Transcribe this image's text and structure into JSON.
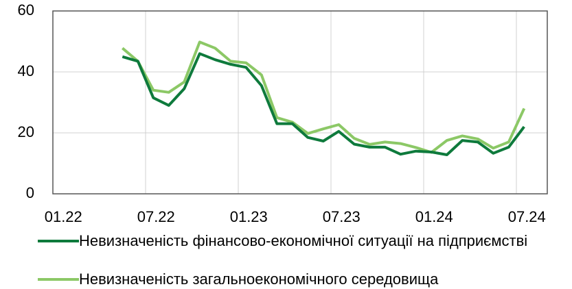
{
  "chart_data": {
    "type": "line",
    "categories": [
      "01.22",
      null,
      null,
      null,
      null,
      null,
      "07.22",
      null,
      null,
      null,
      null,
      null,
      "01.23",
      null,
      null,
      null,
      null,
      null,
      "07.23",
      null,
      null,
      null,
      null,
      null,
      "01.24",
      null,
      null,
      null,
      null,
      null,
      "07.24",
      null
    ],
    "series": [
      {
        "name": "Невизначеність фінансово-економічної ситуації на підприємстві",
        "color": "#0e7a3c",
        "values": [
          null,
          null,
          null,
          null,
          45,
          43.5,
          31.5,
          29,
          34.5,
          46,
          44,
          42.5,
          41.5,
          35.5,
          23,
          23,
          18.5,
          17.3,
          20.5,
          16.3,
          15.3,
          15.3,
          13,
          14,
          13.7,
          12.8,
          17.5,
          17,
          13.3,
          15.3,
          22,
          null
        ]
      },
      {
        "name": "Невизначеність загальноекономічного середовища",
        "color": "#8cc866",
        "values": [
          null,
          null,
          null,
          null,
          47.8,
          43.5,
          34,
          33.3,
          36.7,
          49.8,
          47.8,
          43.5,
          43,
          39,
          25,
          23.5,
          19.8,
          21.3,
          22.7,
          18.2,
          16.2,
          17,
          16.5,
          15.2,
          13.6,
          17.5,
          19,
          18,
          15,
          17,
          28,
          null
        ]
      }
    ],
    "ylim": [
      0,
      60
    ],
    "yticks": [
      0,
      20,
      40,
      60
    ],
    "grid": true
  }
}
